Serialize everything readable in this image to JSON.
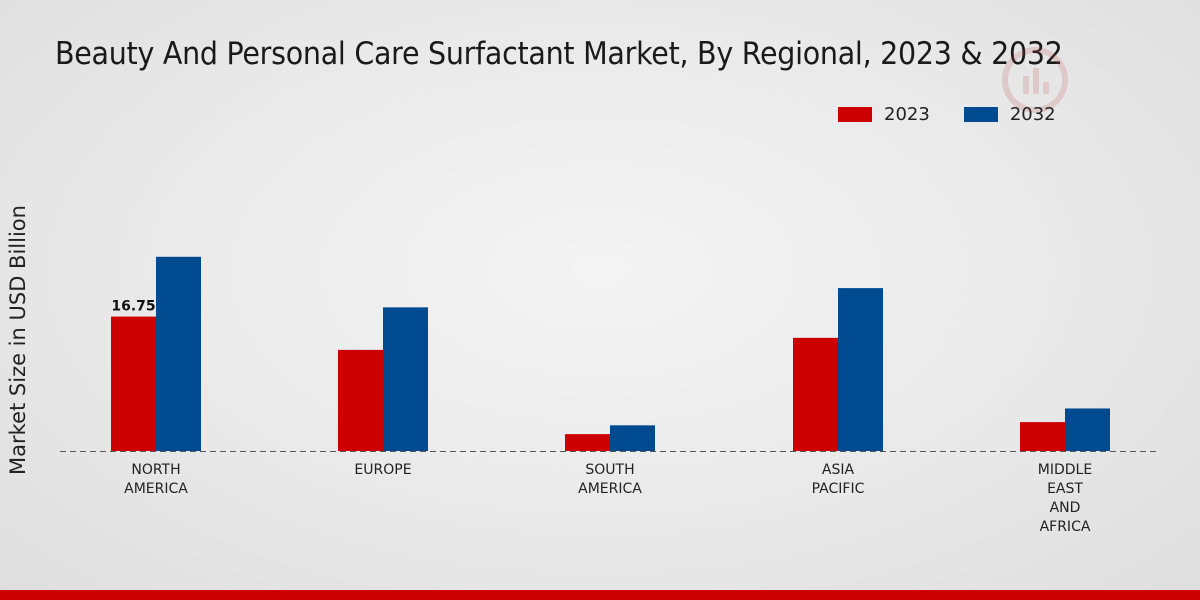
{
  "title": "Beauty And Personal Care Surfactant Market, By Regional, 2023 & 2032",
  "colors": {
    "series_2023": "#cc0000",
    "series_2032": "#004a8f",
    "axis": "#555555",
    "bottom_bar": "#cc0000"
  },
  "chart_data": {
    "type": "bar",
    "title": "Beauty And Personal Care Surfactant Market, By Regional, 2023 & 2032",
    "xlabel": "",
    "ylabel": "Market Size in USD Billion",
    "ylim": [
      0,
      40
    ],
    "grid": false,
    "legend_position": "top-right",
    "categories": [
      [
        "NORTH",
        "AMERICA"
      ],
      [
        "EUROPE"
      ],
      [
        "SOUTH",
        "AMERICA"
      ],
      [
        "ASIA",
        "PACIFIC"
      ],
      [
        "MIDDLE",
        "EAST",
        "AND",
        "AFRICA"
      ]
    ],
    "series": [
      {
        "name": "2023",
        "values": [
          16.75,
          12.6,
          2.1,
          14.1,
          3.6
        ]
      },
      {
        "name": "2032",
        "values": [
          24.2,
          17.9,
          3.2,
          20.3,
          5.3
        ]
      }
    ],
    "data_labels": [
      {
        "series": 0,
        "index": 0,
        "text": "16.75"
      }
    ]
  }
}
